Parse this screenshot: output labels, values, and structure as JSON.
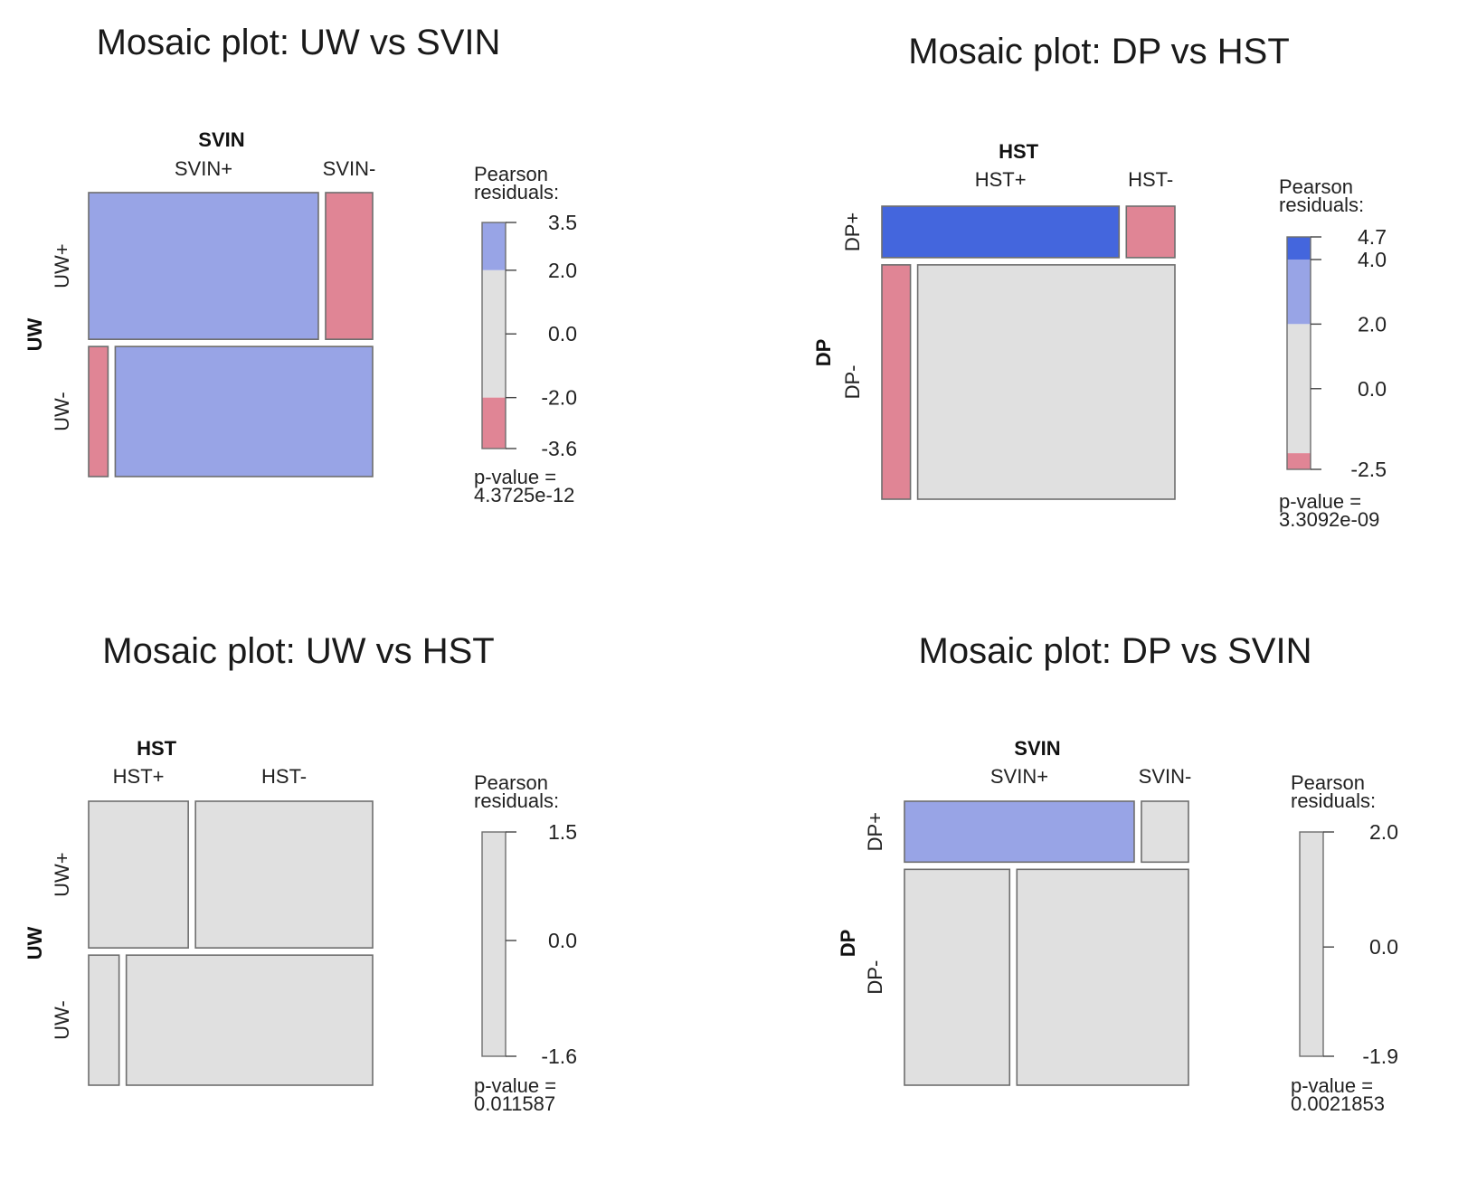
{
  "colors": {
    "strong_positive": "#4466dd",
    "positive": "#98a4e6",
    "neutral": "#e0e0e0",
    "negative": "#e08595",
    "border": "#6e6e6e"
  },
  "chart_data": [
    {
      "type": "mosaic",
      "title": "Mosaic plot: UW vs SVIN",
      "row_variable": "UW",
      "col_variable": "SVIN",
      "row_levels": [
        "UW+",
        "UW-"
      ],
      "col_levels": [
        "SVIN+",
        "SVIN-"
      ],
      "row_proportions": [
        0.53,
        0.47
      ],
      "cell_proportions": [
        [
          0.83,
          0.17
        ],
        [
          0.07,
          0.93
        ]
      ],
      "cell_shading": [
        [
          "positive",
          "negative"
        ],
        [
          "negative",
          "positive"
        ]
      ],
      "legend": {
        "title_lines": [
          "Pearson",
          "residuals:"
        ],
        "min": -3.6,
        "max": 3.5,
        "ticks": [
          "3.5",
          "2.0",
          "0.0",
          "-2.0",
          "-3.6"
        ],
        "tick_values": [
          3.5,
          2.0,
          0.0,
          -2.0,
          -3.6
        ],
        "bands": [
          {
            "from": 2.0,
            "to": 3.5,
            "shade": "positive"
          },
          {
            "from": -2.0,
            "to": 2.0,
            "shade": "neutral"
          },
          {
            "from": -3.6,
            "to": -2.0,
            "shade": "negative"
          }
        ]
      },
      "pvalue_lines": [
        "p-value =",
        "4.3725e-12"
      ]
    },
    {
      "type": "mosaic",
      "title": "Mosaic plot: DP vs HST",
      "row_variable": "DP",
      "col_variable": "HST",
      "row_levels": [
        "DP+",
        "DP-"
      ],
      "col_levels": [
        "HST+",
        "HST-"
      ],
      "row_proportions": [
        0.18,
        0.82
      ],
      "cell_proportions": [
        [
          0.83,
          0.17
        ],
        [
          0.1,
          0.9
        ]
      ],
      "cell_shading": [
        [
          "strong_positive",
          "negative"
        ],
        [
          "negative",
          "neutral"
        ]
      ],
      "legend": {
        "title_lines": [
          "Pearson",
          "residuals:"
        ],
        "min": -2.5,
        "max": 4.7,
        "ticks": [
          "4.7",
          "4.0",
          "2.0",
          "0.0",
          "-2.5"
        ],
        "tick_values": [
          4.7,
          4.0,
          2.0,
          0.0,
          -2.5
        ],
        "bands": [
          {
            "from": 4.0,
            "to": 4.7,
            "shade": "strong_positive"
          },
          {
            "from": 2.0,
            "to": 4.0,
            "shade": "positive"
          },
          {
            "from": -2.0,
            "to": 2.0,
            "shade": "neutral"
          },
          {
            "from": -2.5,
            "to": -2.0,
            "shade": "negative"
          }
        ]
      },
      "pvalue_lines": [
        "p-value =",
        "3.3092e-09"
      ]
    },
    {
      "type": "mosaic",
      "title": "Mosaic plot: UW vs HST",
      "row_variable": "UW",
      "col_variable": "HST",
      "row_levels": [
        "UW+",
        "UW-"
      ],
      "col_levels": [
        "HST+",
        "HST-"
      ],
      "row_proportions": [
        0.53,
        0.47
      ],
      "cell_proportions": [
        [
          0.36,
          0.64
        ],
        [
          0.11,
          0.89
        ]
      ],
      "cell_shading": [
        [
          "neutral",
          "neutral"
        ],
        [
          "neutral",
          "neutral"
        ]
      ],
      "legend": {
        "title_lines": [
          "Pearson",
          "residuals:"
        ],
        "min": -1.6,
        "max": 1.5,
        "ticks": [
          "1.5",
          "0.0",
          "-1.6"
        ],
        "tick_values": [
          1.5,
          0.0,
          -1.6
        ],
        "bands": [
          {
            "from": -1.6,
            "to": 1.5,
            "shade": "neutral"
          }
        ]
      },
      "pvalue_lines": [
        "p-value =",
        "0.011587"
      ]
    },
    {
      "type": "mosaic",
      "title": "Mosaic plot: DP vs SVIN",
      "row_variable": "DP",
      "col_variable": "SVIN",
      "row_levels": [
        "DP+",
        "DP-"
      ],
      "col_levels": [
        "SVIN+",
        "SVIN-"
      ],
      "row_proportions": [
        0.22,
        0.78
      ],
      "cell_proportions": [
        [
          0.83,
          0.17
        ],
        [
          0.38,
          0.62
        ]
      ],
      "cell_shading": [
        [
          "positive",
          "neutral"
        ],
        [
          "neutral",
          "neutral"
        ]
      ],
      "legend": {
        "title_lines": [
          "Pearson",
          "residuals:"
        ],
        "min": -1.9,
        "max": 2.0,
        "ticks": [
          "2.0",
          "0.0",
          "-1.9"
        ],
        "tick_values": [
          2.0,
          0.0,
          -1.9
        ],
        "bands": [
          {
            "from": -1.9,
            "to": 2.0,
            "shade": "neutral"
          }
        ]
      },
      "pvalue_lines": [
        "p-value =",
        "0.0021853"
      ]
    }
  ]
}
